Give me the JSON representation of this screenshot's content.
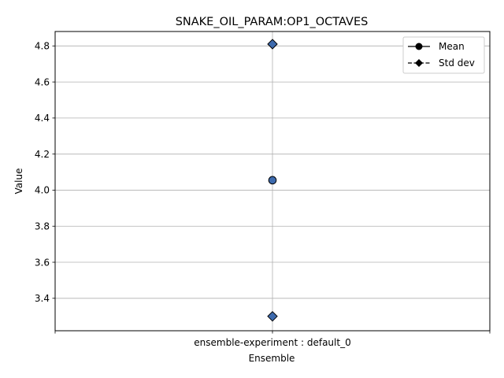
{
  "chart_data": {
    "type": "scatter",
    "title": "SNAKE_OIL_PARAM:OP1_OCTAVES",
    "xlabel": "Ensemble",
    "ylabel": "Value",
    "categories": [
      "ensemble-experiment : default_0"
    ],
    "ylim": [
      3.22,
      4.88
    ],
    "yticks": [
      "3.4",
      "3.6",
      "3.8",
      "4.0",
      "4.2",
      "4.4",
      "4.6",
      "4.8"
    ],
    "grid": true,
    "legend_position": "top-right",
    "marker_color": "#3d6aad",
    "series": [
      {
        "name": "Mean",
        "marker": "circle",
        "line": "solid",
        "values": [
          4.055
        ]
      },
      {
        "name": "Std dev",
        "marker": "diamond",
        "line": "dashed",
        "values": [
          3.3,
          4.81
        ]
      }
    ]
  }
}
